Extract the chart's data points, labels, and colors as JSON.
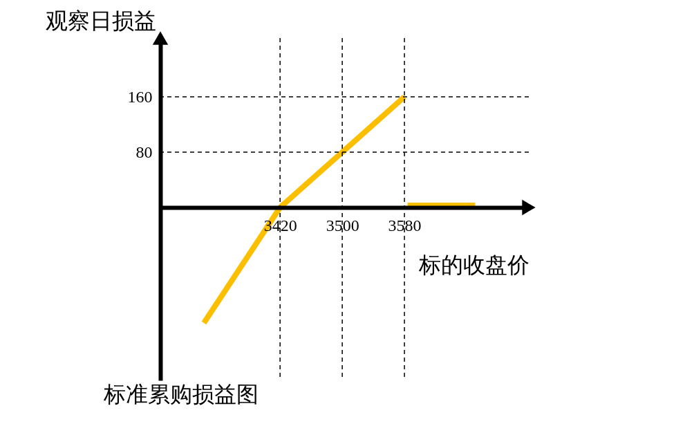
{
  "chart_data": {
    "type": "line",
    "title": "标准累购损益图",
    "xlabel": "标的收盘价",
    "ylabel": "观察日损益",
    "xlim": [
      3266,
      3740
    ],
    "xticks": [
      3420,
      3500,
      3580
    ],
    "ylim": [
      -250,
      245
    ],
    "yticks": [
      80,
      160
    ],
    "series": [
      {
        "color": "#fbbf00",
        "x": [
          3322,
          3420,
          3580
        ],
        "values": [
          -167,
          0,
          160
        ]
      },
      {
        "color": "#fbbf00",
        "x": [
          3584,
          3671
        ],
        "values": [
          3,
          3
        ]
      }
    ],
    "ref_lines": [
      {
        "axis": "x",
        "value": 3420,
        "line_style": "dashed",
        "color": "#000000"
      },
      {
        "axis": "x",
        "value": 3500,
        "line_style": "dashed",
        "color": "#000000"
      },
      {
        "axis": "x",
        "value": 3580,
        "line_style": "dashed",
        "color": "#000000"
      },
      {
        "axis": "y",
        "value": 80,
        "line_style": "dashed",
        "color": "#000000"
      },
      {
        "axis": "y",
        "value": 160,
        "line_style": "dashed",
        "color": "#000000"
      }
    ],
    "grid": false
  }
}
